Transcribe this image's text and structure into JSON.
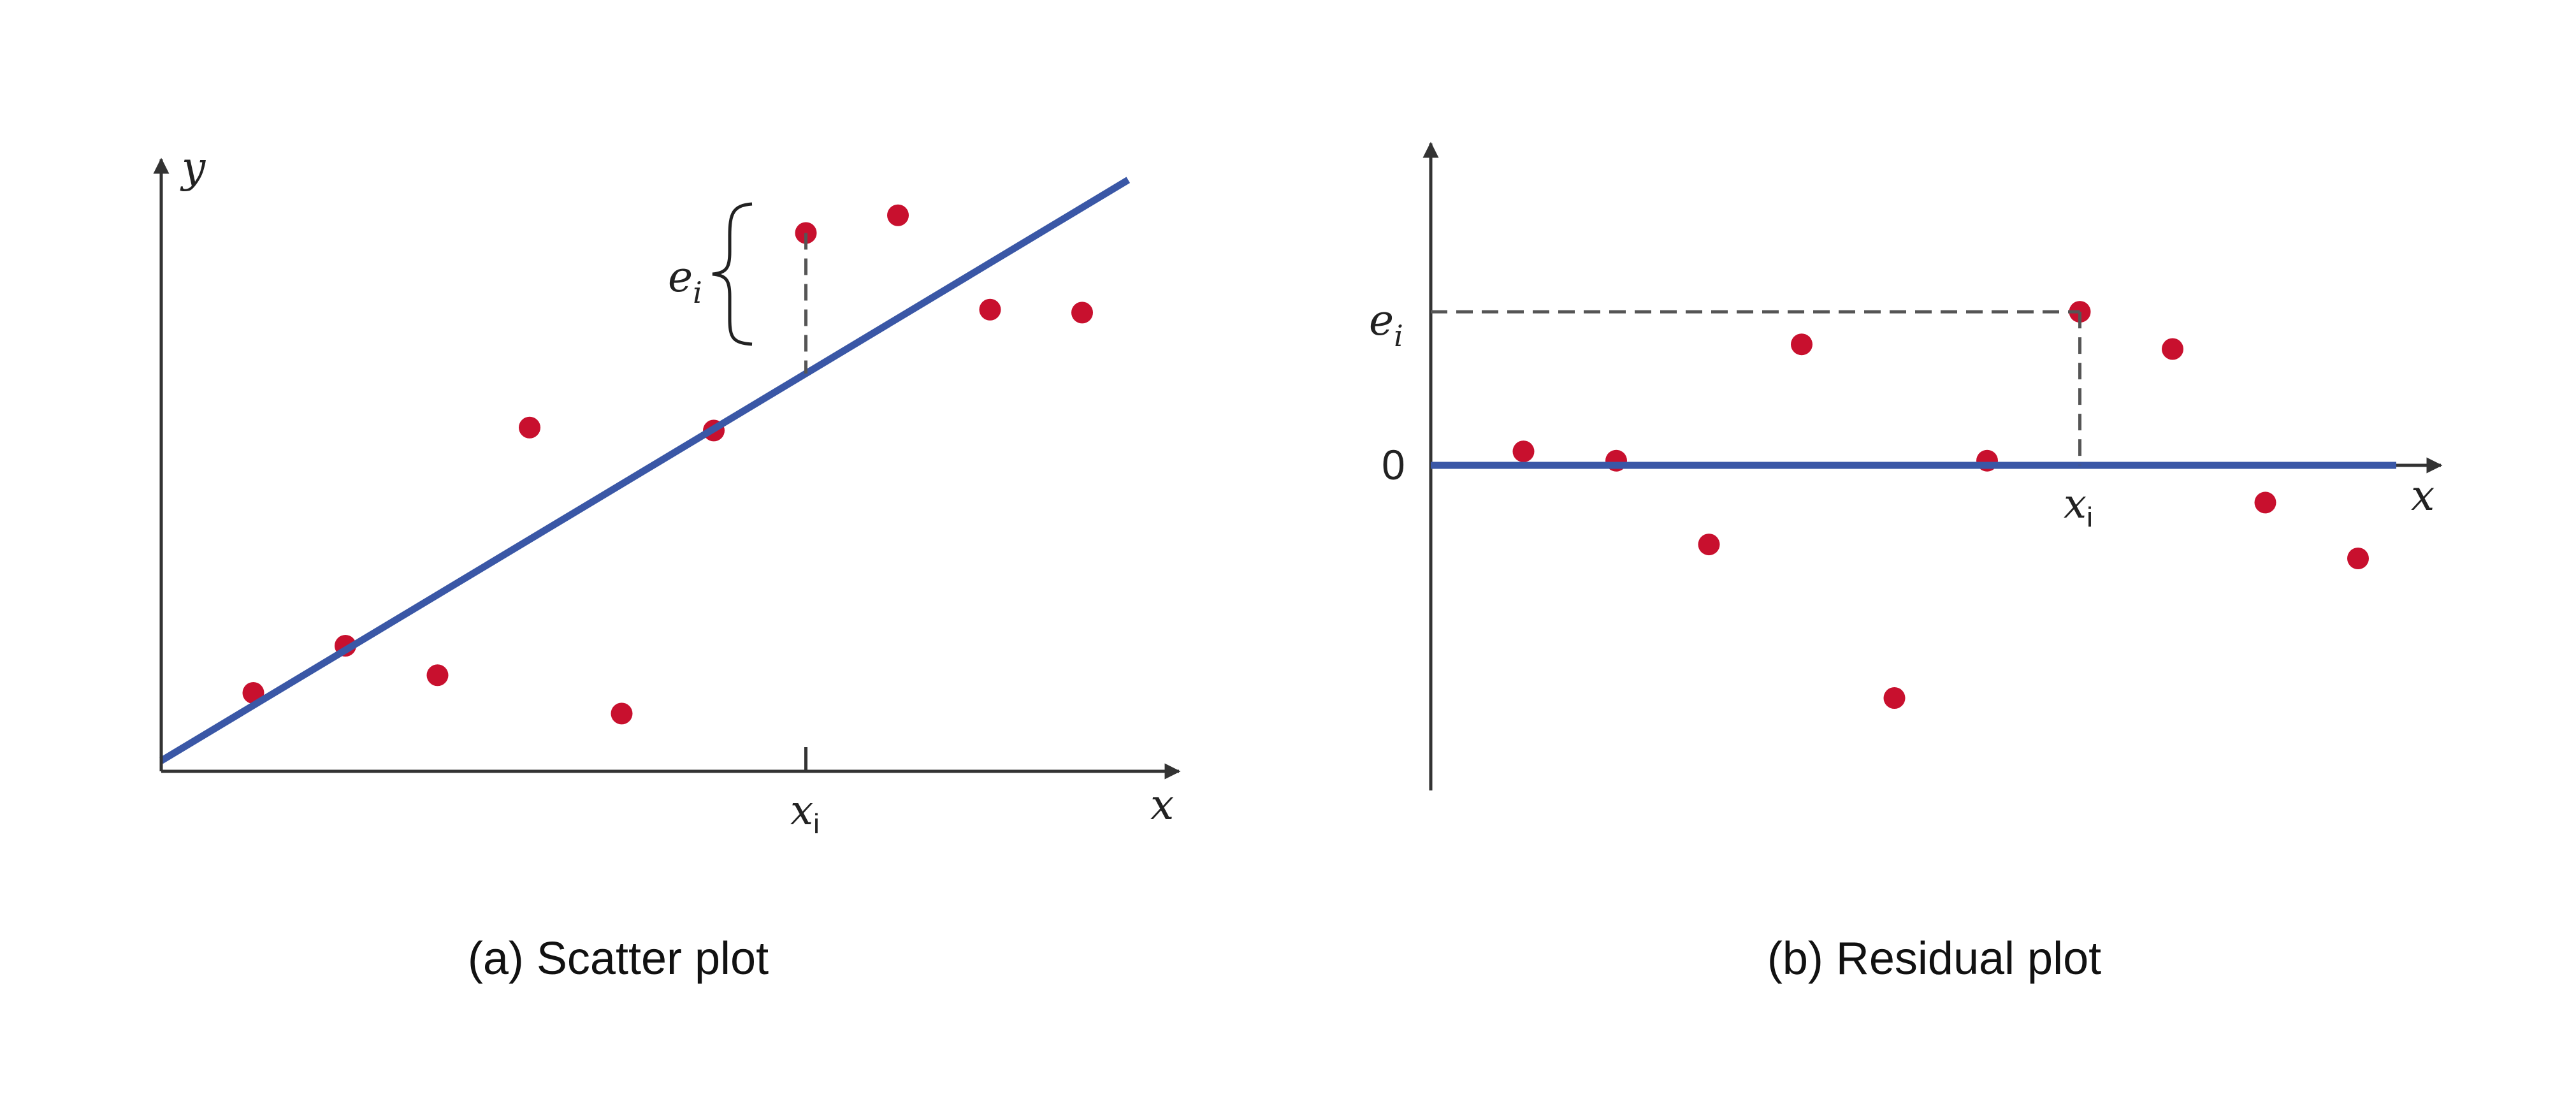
{
  "figure": {
    "colors": {
      "point": "#c8102e",
      "line": "#3a57a6",
      "axis": "#333333",
      "guide": "#555555",
      "text": "#222222"
    }
  },
  "chart_data": [
    {
      "type": "scatter",
      "caption": "(a) Scatter plot",
      "xlabel": "x",
      "ylabel": "y",
      "x_marker_label": "x",
      "x_marker_subscript": "i",
      "residual_label": "e",
      "residual_subscript": "i",
      "xlim": [
        0,
        11
      ],
      "ylim": [
        0,
        10
      ],
      "points": [
        {
          "x": 1,
          "y": 1.6
        },
        {
          "x": 2,
          "y": 2.4
        },
        {
          "x": 3,
          "y": 1.9
        },
        {
          "x": 4,
          "y": 6.1
        },
        {
          "x": 5,
          "y": 1.25
        },
        {
          "x": 6,
          "y": 6.05
        },
        {
          "x": 7,
          "y": 9.4
        },
        {
          "x": 8,
          "y": 9.7
        },
        {
          "x": 9,
          "y": 8.1
        },
        {
          "x": 10,
          "y": 8.05
        }
      ],
      "fit_line": {
        "x0": 0,
        "y0": 0.45,
        "x1": 10.5,
        "y1": 10.3
      },
      "highlight_x": 7
    },
    {
      "type": "scatter",
      "caption": "(b) Residual plot",
      "xlabel": "x",
      "x_marker_label": "x",
      "x_marker_subscript": "i",
      "residual_label": "e",
      "residual_subscript": "i",
      "zero_label": "0",
      "xlim": [
        0,
        11
      ],
      "ylim": [
        -3.5,
        3.5
      ],
      "points": [
        {
          "x": 1,
          "y": 0.15
        },
        {
          "x": 2,
          "y": 0.05
        },
        {
          "x": 3,
          "y": -0.85
        },
        {
          "x": 4,
          "y": 1.3
        },
        {
          "x": 5,
          "y": -2.5
        },
        {
          "x": 6,
          "y": 0.05
        },
        {
          "x": 7,
          "y": 1.65
        },
        {
          "x": 8,
          "y": 1.25
        },
        {
          "x": 9,
          "y": -0.4
        },
        {
          "x": 10,
          "y": -1.0
        }
      ],
      "zero_line": 0,
      "highlight_x": 7
    }
  ]
}
